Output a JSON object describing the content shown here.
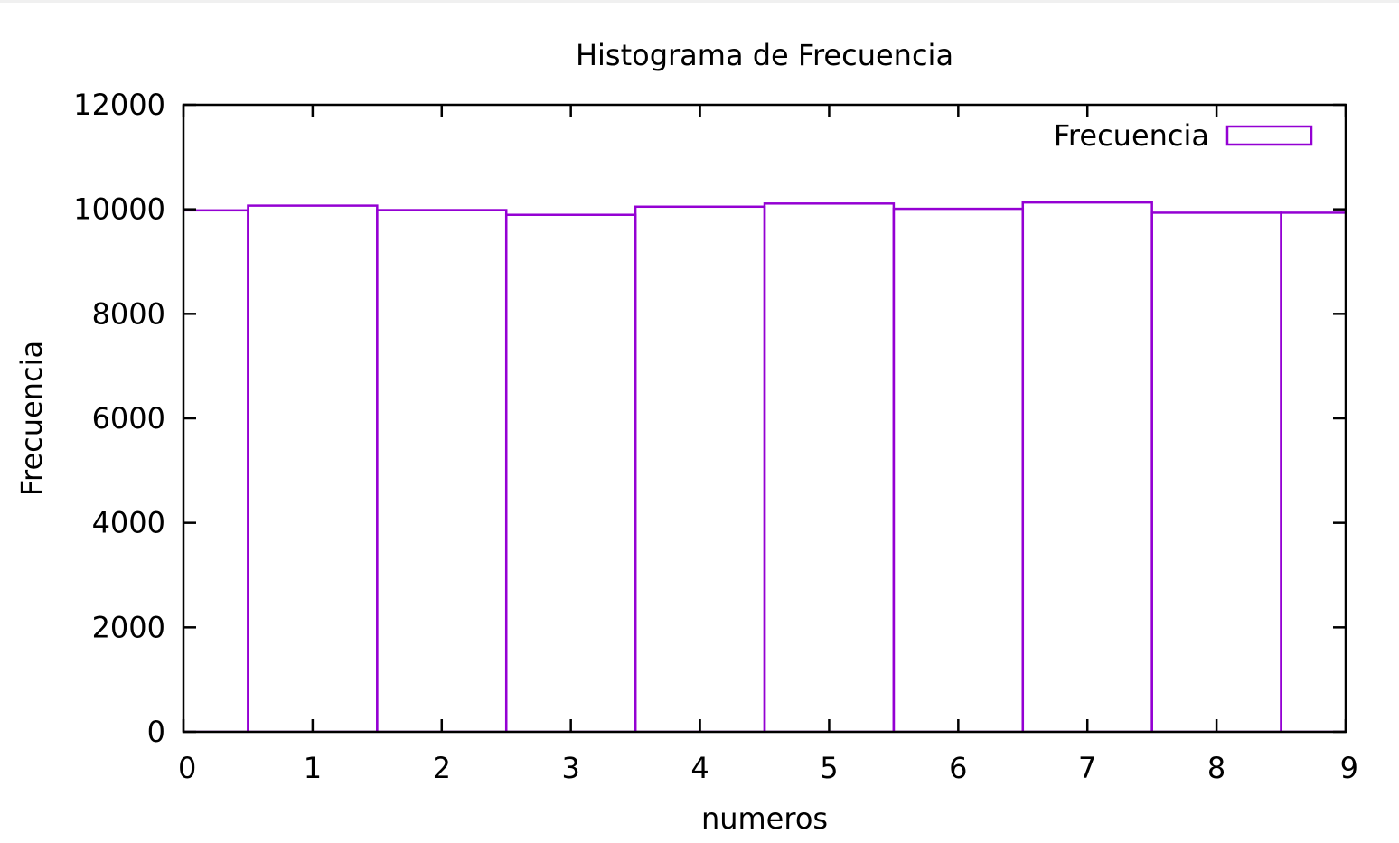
{
  "chart_data": {
    "type": "bar",
    "title": "Histograma de Frecuencia",
    "xlabel": "numeros",
    "ylabel": "Frecuencia",
    "x": [
      0,
      1,
      2,
      3,
      4,
      5,
      6,
      7,
      8,
      9
    ],
    "series": [
      {
        "name": "Frecuencia",
        "values": [
          9980,
          10070,
          9985,
          9895,
          10050,
          10110,
          10010,
          10130,
          9935,
          9935
        ]
      }
    ],
    "xlim": [
      0,
      9
    ],
    "ylim": [
      0,
      12000
    ],
    "xticks": [
      "0",
      "1",
      "2",
      "3",
      "4",
      "5",
      "6",
      "7",
      "8",
      "9"
    ],
    "yticks": [
      "0",
      "2000",
      "4000",
      "6000",
      "8000",
      "10000",
      "12000"
    ],
    "grid": false,
    "legend": "top-right",
    "bar_width": 1,
    "colors": {
      "bar_outline": "#9400d3",
      "axis": "#000000"
    }
  }
}
